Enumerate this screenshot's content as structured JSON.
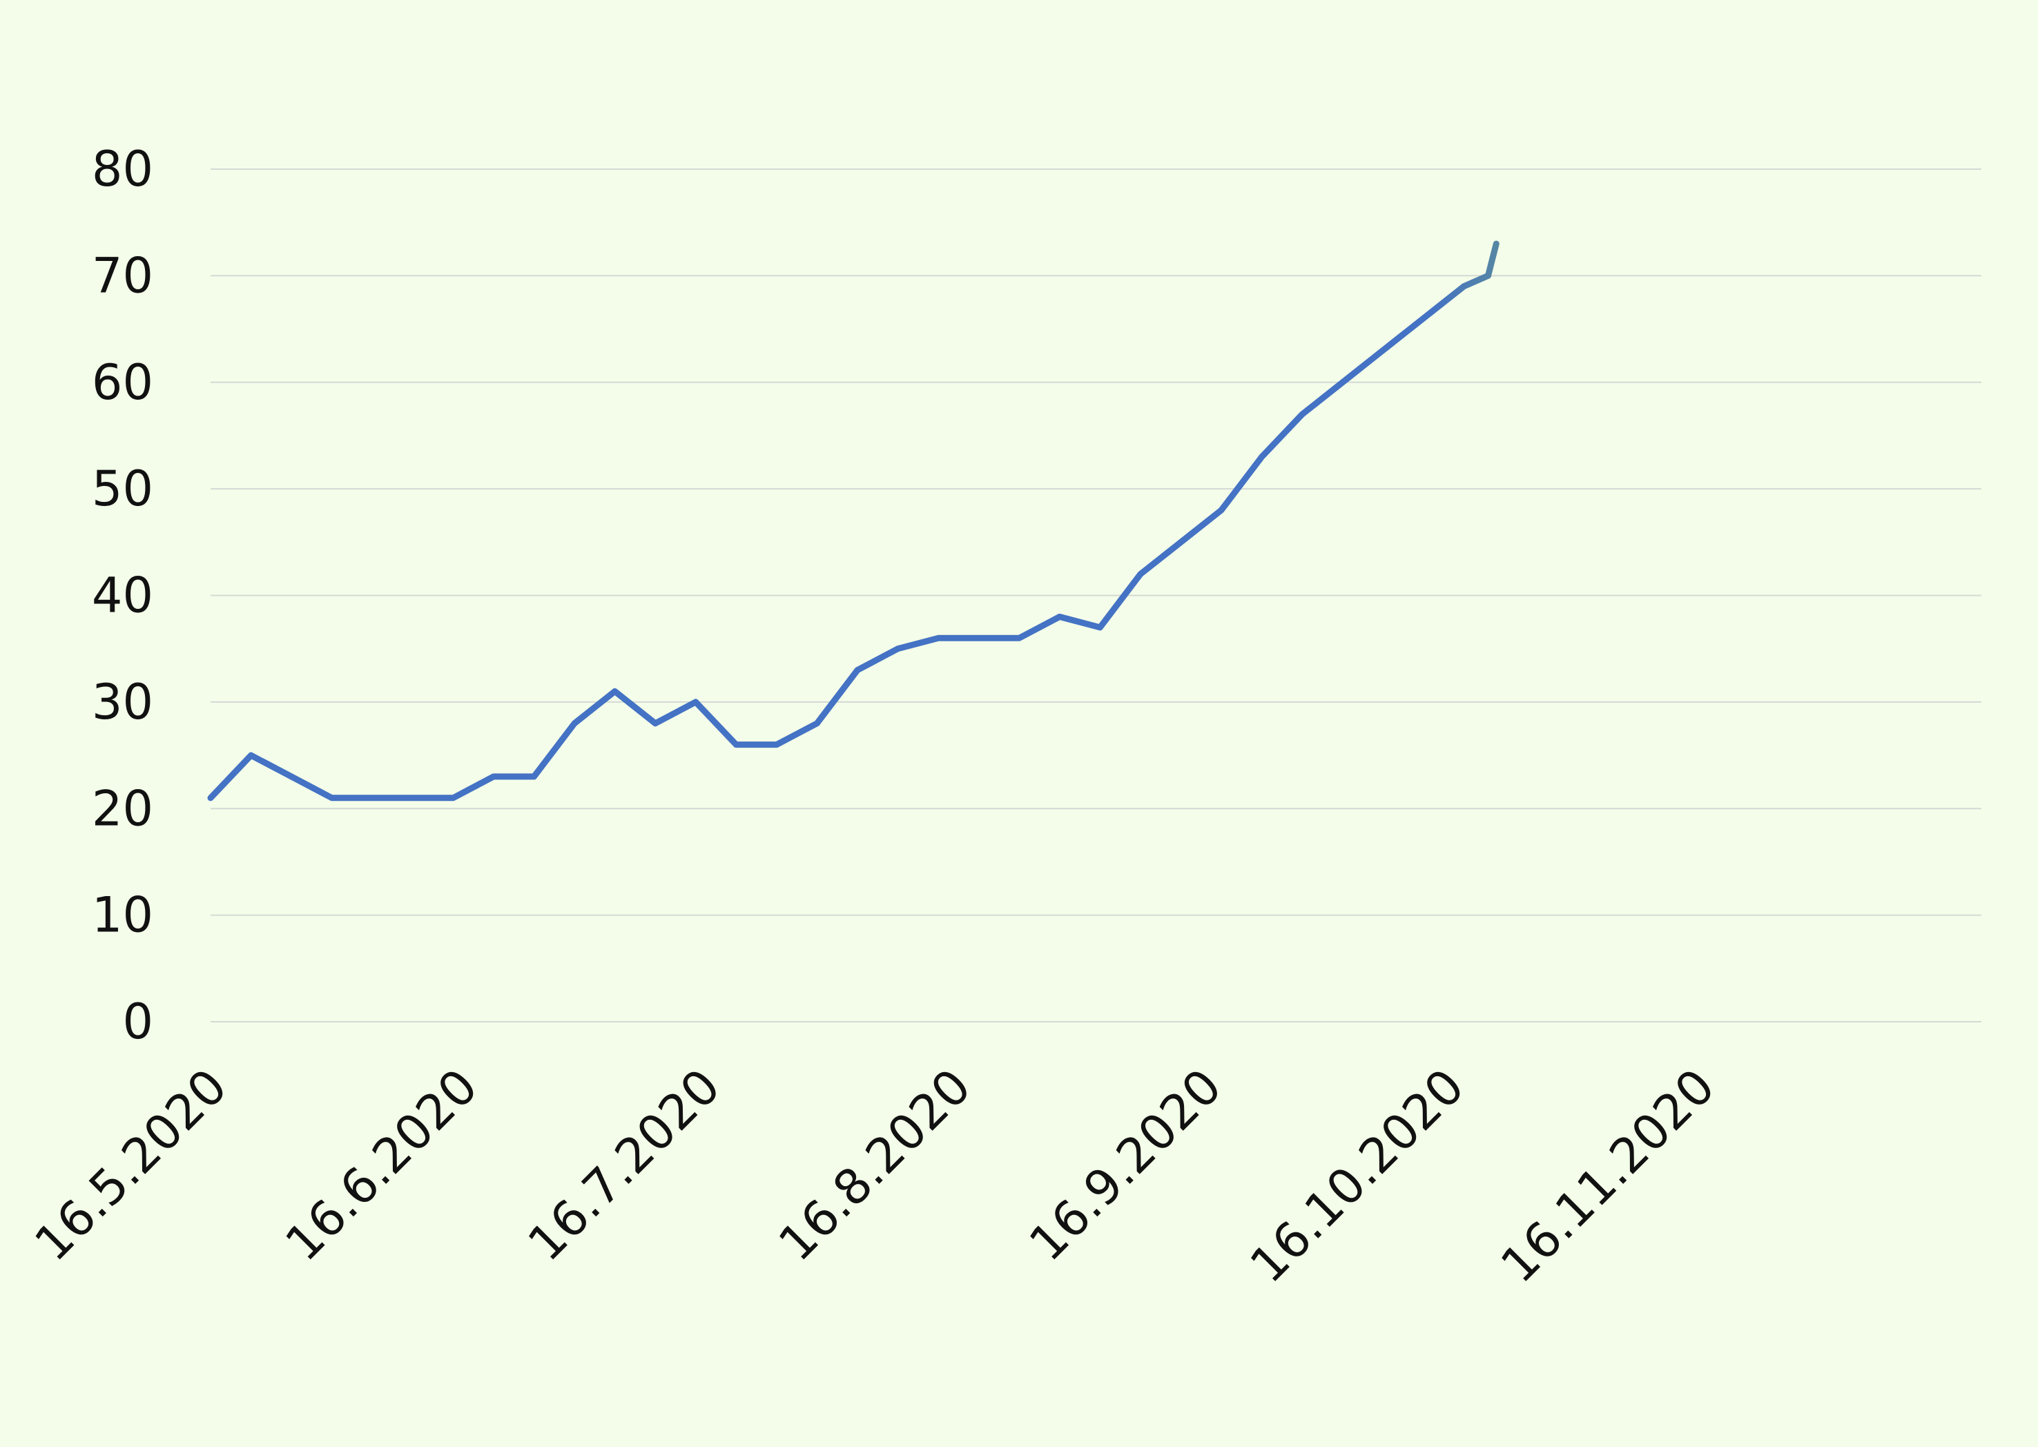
{
  "chart_data": {
    "type": "line",
    "title": "",
    "xlabel": "",
    "ylabel": "",
    "ylim": [
      0,
      80
    ],
    "yticks": [
      0,
      10,
      20,
      30,
      40,
      50,
      60,
      70,
      80
    ],
    "xlim": [
      "16.5.2020",
      "21.12.2020"
    ],
    "x_tick_labels": [
      "16.5.2020",
      "16.6.2020",
      "16.7.2020",
      "16.8.2020",
      "16.9.2020",
      "16.10.2020",
      "16.11.2020"
    ],
    "grid": "horizontal",
    "legend": "none",
    "colors": {
      "background": "#f3fde9",
      "grid": "#d4d9d4",
      "line_start": "#4472c4",
      "line_end": "#8cc63f"
    },
    "series": [
      {
        "points": [
          {
            "x": "16.5.2020",
            "y": 21
          },
          {
            "x": "21.5.2020",
            "y": 25
          },
          {
            "x": "26.5.2020",
            "y": 23
          },
          {
            "x": "31.5.2020",
            "y": 21
          },
          {
            "x": "5.6.2020",
            "y": 21
          },
          {
            "x": "10.6.2020",
            "y": 21
          },
          {
            "x": "15.6.2020",
            "y": 21
          },
          {
            "x": "20.6.2020",
            "y": 23
          },
          {
            "x": "25.6.2020",
            "y": 23
          },
          {
            "x": "30.6.2020",
            "y": 28
          },
          {
            "x": "5.7.2020",
            "y": 31
          },
          {
            "x": "10.7.2020",
            "y": 28
          },
          {
            "x": "15.7.2020",
            "y": 30
          },
          {
            "x": "20.7.2020",
            "y": 26
          },
          {
            "x": "25.7.2020",
            "y": 26
          },
          {
            "x": "30.7.2020",
            "y": 28
          },
          {
            "x": "4.8.2020",
            "y": 33
          },
          {
            "x": "9.8.2020",
            "y": 35
          },
          {
            "x": "14.8.2020",
            "y": 36
          },
          {
            "x": "19.8.2020",
            "y": 36
          },
          {
            "x": "24.8.2020",
            "y": 36
          },
          {
            "x": "29.8.2020",
            "y": 38
          },
          {
            "x": "3.9.2020",
            "y": 37
          },
          {
            "x": "8.9.2020",
            "y": 42
          },
          {
            "x": "13.9.2020",
            "y": 45
          },
          {
            "x": "18.9.2020",
            "y": 48
          },
          {
            "x": "23.9.2020",
            "y": 53
          },
          {
            "x": "28.9.2020",
            "y": 57
          },
          {
            "x": "3.10.2020",
            "y": 60
          },
          {
            "x": "8.10.2020",
            "y": 63
          },
          {
            "x": "13.10.2020",
            "y": 66
          },
          {
            "x": "18.10.2020",
            "y": 69
          },
          {
            "x": "21.10.2020",
            "y": 70
          },
          {
            "x": "22.10.2020",
            "y": 73
          }
        ]
      }
    ]
  }
}
